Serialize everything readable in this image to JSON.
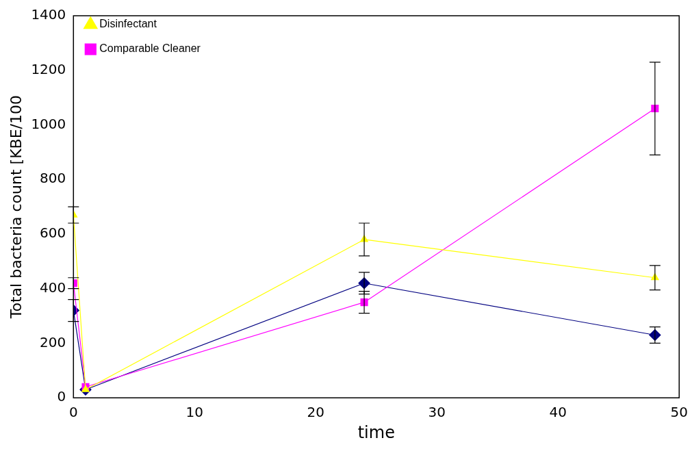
{
  "chart_data": {
    "type": "line",
    "xlabel": "time",
    "ylabel": "Total bacteria count [KBE/100",
    "x": [
      0,
      1,
      24,
      48
    ],
    "series": [
      {
        "color": "#000080",
        "marker": "diamond",
        "values": [
          320,
          30,
          420,
          230
        ],
        "errors": [
          40,
          null,
          40,
          30
        ]
      },
      {
        "name": "Comparable Cleaner",
        "color": "#ff00ff",
        "marker": "square",
        "values": [
          420,
          40,
          350,
          1060
        ],
        "errors": [
          20,
          null,
          40,
          170
        ]
      },
      {
        "name": "Disinfectant",
        "color": "#ffff00",
        "marker": "triangle",
        "values": [
          670,
          30,
          580,
          440
        ],
        "errors": [
          30,
          null,
          60,
          45
        ]
      }
    ],
    "xlim": [
      0,
      50
    ],
    "xticks": [
      0,
      10,
      20,
      30,
      40,
      50
    ],
    "ylim": [
      0,
      1400
    ],
    "yticks": [
      0,
      200,
      400,
      600,
      800,
      1000,
      1200,
      1400
    ],
    "grid": false,
    "legend": "top left"
  }
}
